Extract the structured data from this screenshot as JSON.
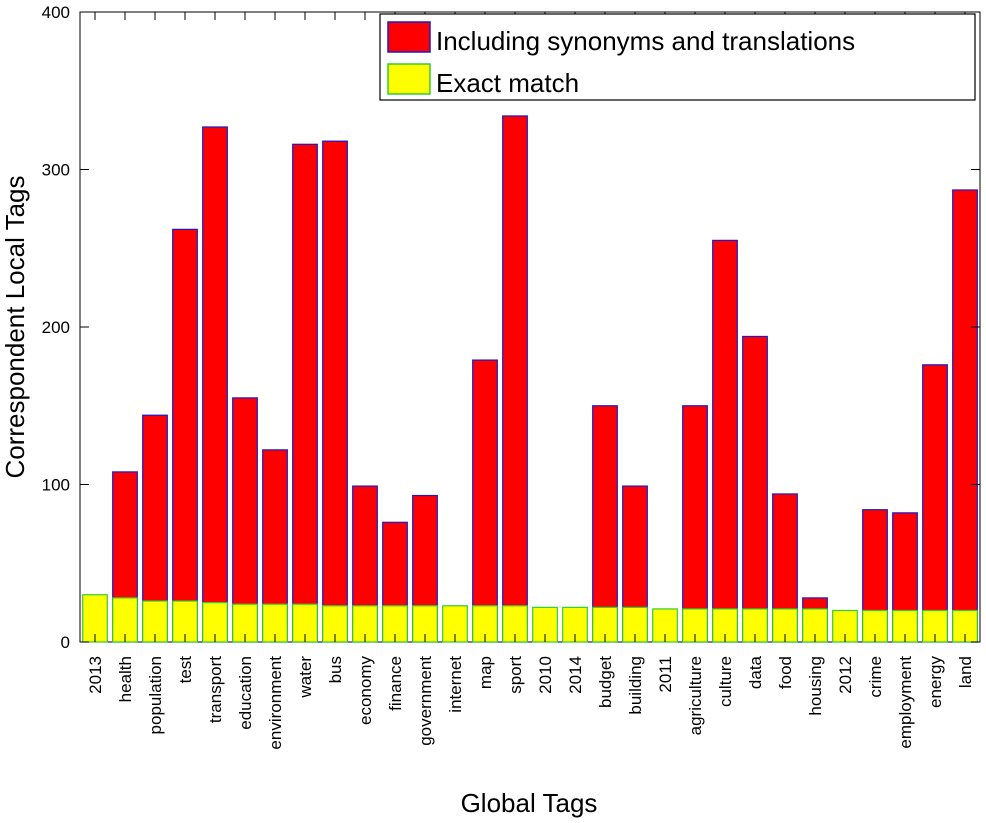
{
  "chart_data": {
    "type": "bar",
    "title": "",
    "xlabel": "Global Tags",
    "ylabel": "Correspondent Local Tags",
    "ylim": [
      0,
      400
    ],
    "yticks": [
      0,
      100,
      200,
      300,
      400
    ],
    "grid": false,
    "legend_position": "top-right",
    "categories": [
      "2013",
      "health",
      "population",
      "test",
      "transport",
      "education",
      "environment",
      "water",
      "bus",
      "economy",
      "finance",
      "government",
      "internet",
      "map",
      "sport",
      "2010",
      "2014",
      "budget",
      "building",
      "2011",
      "agriculture",
      "culture",
      "data",
      "food",
      "housing",
      "2012",
      "crime",
      "employment",
      "energy",
      "land"
    ],
    "series": [
      {
        "name": "Including synonyms and translations",
        "color": "#ff0000",
        "edge_color": "#1a1acc",
        "values": [
          0,
          108,
          144,
          262,
          327,
          155,
          122,
          316,
          318,
          99,
          76,
          93,
          0,
          179,
          334,
          0,
          0,
          150,
          99,
          0,
          150,
          255,
          194,
          94,
          28,
          0,
          84,
          82,
          176,
          287
        ]
      },
      {
        "name": "Exact match",
        "color": "#ffff00",
        "edge_color": "#33cc33",
        "values": [
          30,
          28,
          26,
          26,
          25,
          24,
          24,
          24,
          23,
          23,
          23,
          23,
          23,
          23,
          23,
          22,
          22,
          22,
          22,
          21,
          21,
          21,
          21,
          21,
          21,
          20,
          20,
          20,
          20,
          20
        ]
      }
    ]
  }
}
